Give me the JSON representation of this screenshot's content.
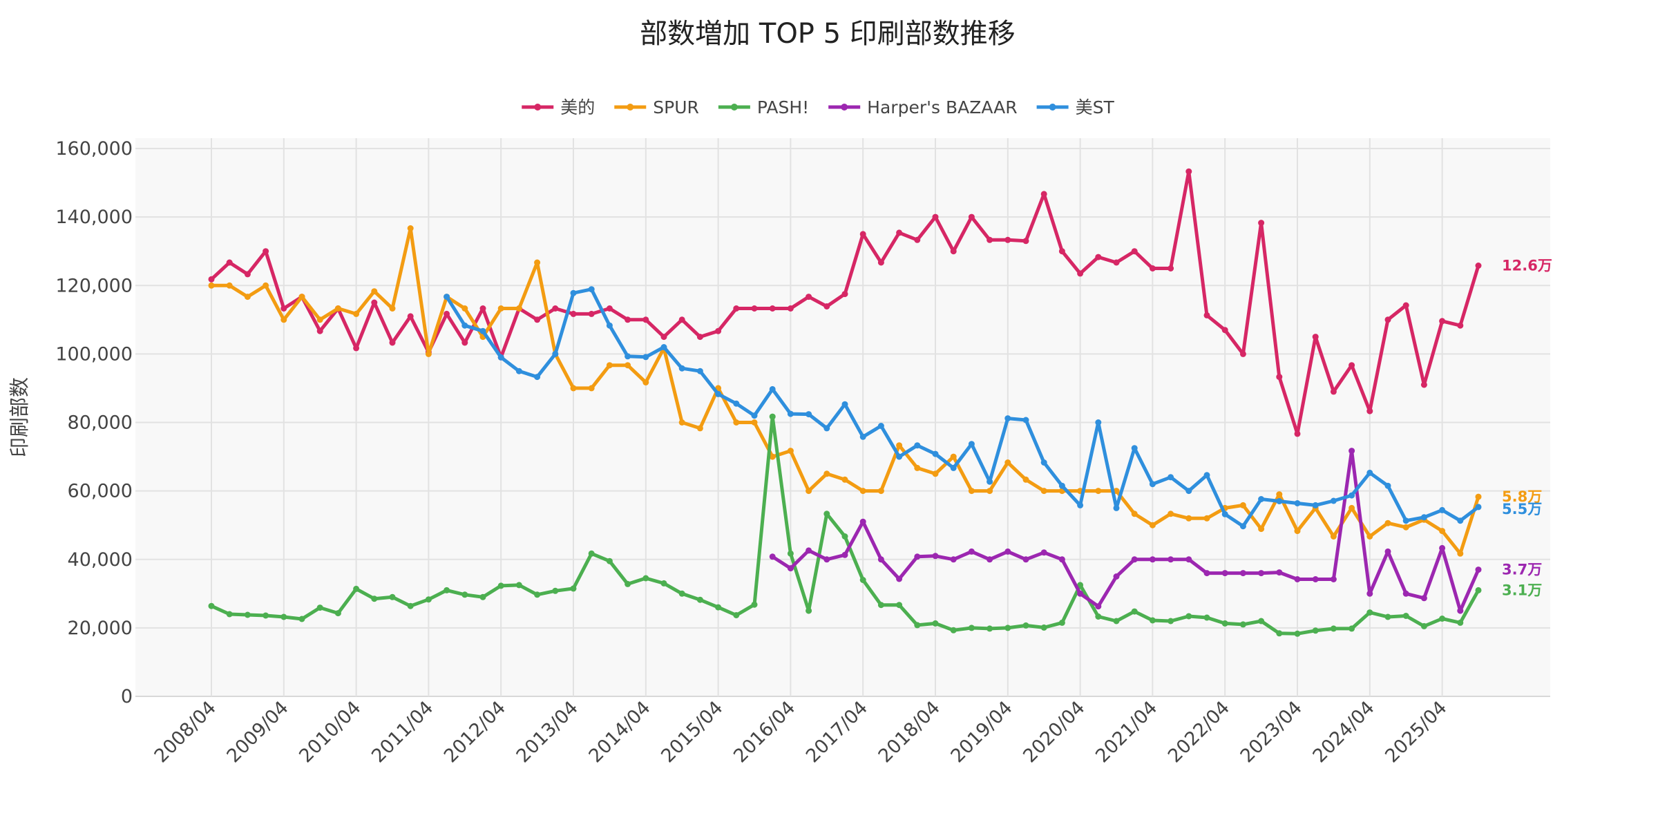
{
  "chart_data": {
    "type": "line",
    "title": "部数増加 TOP 5 印刷部数推移",
    "xlabel": "",
    "ylabel": "印刷部数",
    "ylim": [
      0,
      160000
    ],
    "yticks": [
      0,
      20000,
      40000,
      60000,
      80000,
      100000,
      120000,
      140000,
      160000
    ],
    "ytick_labels": [
      "0",
      "20,000",
      "40,000",
      "60,000",
      "80,000",
      "100,000",
      "120,000",
      "140,000",
      "160,000"
    ],
    "xticks": [
      "2008/04",
      "2009/04",
      "2010/04",
      "2011/04",
      "2012/04",
      "2013/04",
      "2014/04",
      "2015/04",
      "2016/04",
      "2017/04",
      "2018/04",
      "2019/04",
      "2020/04",
      "2021/04",
      "2022/04",
      "2023/04",
      "2024/04",
      "2025/04"
    ],
    "x_period": "quarterly",
    "x_start": "2008/04",
    "grid": true,
    "legend_position": "top-center",
    "series": [
      {
        "name": "美的",
        "color": "#d62765",
        "end_label": "12.6万",
        "values": [
          121800,
          126700,
          123300,
          130000,
          113300,
          116700,
          106700,
          113300,
          101700,
          115000,
          103300,
          111000,
          100500,
          111700,
          103300,
          113300,
          99000,
          113300,
          110000,
          113300,
          111700,
          111700,
          113300,
          110000,
          110000,
          105000,
          110000,
          105000,
          106700,
          113300,
          113300,
          113300,
          113300,
          116700,
          113900,
          117500,
          135000,
          126700,
          135400,
          133300,
          140000,
          130000,
          140000,
          133300,
          133300,
          133000,
          146700,
          130000,
          123500,
          128300,
          126700,
          130000,
          125000,
          125000,
          153300,
          111300,
          107000,
          100000,
          138300,
          93300,
          76700,
          105000,
          89000,
          96700,
          83300,
          110000,
          114200,
          91000,
          109600,
          108300,
          125800
        ]
      },
      {
        "name": "SPUR",
        "color": "#f39c12",
        "end_label": "5.8万",
        "values": [
          120000,
          120000,
          116700,
          120000,
          110000,
          116700,
          110000,
          113300,
          111700,
          118300,
          113300,
          136700,
          100000,
          116700,
          113300,
          105000,
          113300,
          113300,
          126700,
          100000,
          90000,
          90000,
          96700,
          96700,
          91700,
          101700,
          80000,
          78300,
          90000,
          80000,
          80000,
          70000,
          71700,
          60000,
          65000,
          63300,
          60000,
          60000,
          73300,
          66700,
          65000,
          70000,
          60000,
          60000,
          68300,
          63300,
          60000,
          60000,
          60000,
          60000,
          60000,
          53300,
          50000,
          53300,
          52000,
          52000,
          55000,
          55800,
          48900,
          59000,
          48300,
          55000,
          46700,
          55000,
          46700,
          50600,
          49400,
          51600,
          48300,
          41700,
          58300
        ]
      },
      {
        "name": "PASH!",
        "color": "#4caf50",
        "end_label": "3.1万",
        "values": [
          26400,
          24000,
          23800,
          23600,
          23200,
          22600,
          25900,
          24300,
          31400,
          28500,
          29000,
          26400,
          28300,
          31000,
          29700,
          29000,
          32300,
          32500,
          29700,
          30800,
          31500,
          41700,
          39500,
          32800,
          34500,
          33000,
          30000,
          28200,
          26000,
          23700,
          26800,
          81700,
          41700,
          25000,
          53300,
          46700,
          34000,
          26700,
          26700,
          20800,
          21300,
          19300,
          20000,
          19800,
          20000,
          20700,
          20100,
          21500,
          32500,
          23300,
          22000,
          24800,
          22200,
          22000,
          23400,
          23000,
          21300,
          21000,
          22000,
          18400,
          18300,
          19200,
          19800,
          19800,
          24500,
          23200,
          23500,
          20500,
          22700,
          21500,
          31000
        ]
      },
      {
        "name": "Harper's BAZAAR",
        "color": "#9c27b0",
        "end_label": "3.7万",
        "start_index": 31,
        "values": [
          40800,
          37400,
          42600,
          40000,
          41300,
          51000,
          40000,
          34300,
          40800,
          41000,
          40000,
          42300,
          40000,
          42300,
          40000,
          42000,
          40000,
          30000,
          26300,
          35000,
          40000,
          40000,
          40000,
          40000,
          36000,
          36000,
          36000,
          36000,
          36200,
          34200,
          34200,
          34200,
          71700,
          30000,
          42300,
          30000,
          28700,
          43300,
          25000,
          37000
        ]
      },
      {
        "name": "美ST",
        "color": "#2f8fdd",
        "end_label": "5.5万",
        "start_index": 13,
        "values": [
          116700,
          108300,
          106700,
          99000,
          95000,
          93300,
          100000,
          117800,
          118900,
          108300,
          99300,
          99100,
          102000,
          95800,
          95000,
          88300,
          85500,
          82000,
          89700,
          82500,
          82400,
          78300,
          85300,
          75800,
          79000,
          70000,
          73300,
          70800,
          66700,
          73700,
          62700,
          81200,
          80700,
          68300,
          61500,
          55800,
          80000,
          55000,
          72500,
          62000,
          64000,
          60000,
          64600,
          53200,
          49700,
          57600,
          57000,
          56400,
          55800,
          57100,
          58700,
          65300,
          61500,
          51300,
          52300,
          54400,
          51300,
          55300
        ]
      }
    ]
  }
}
